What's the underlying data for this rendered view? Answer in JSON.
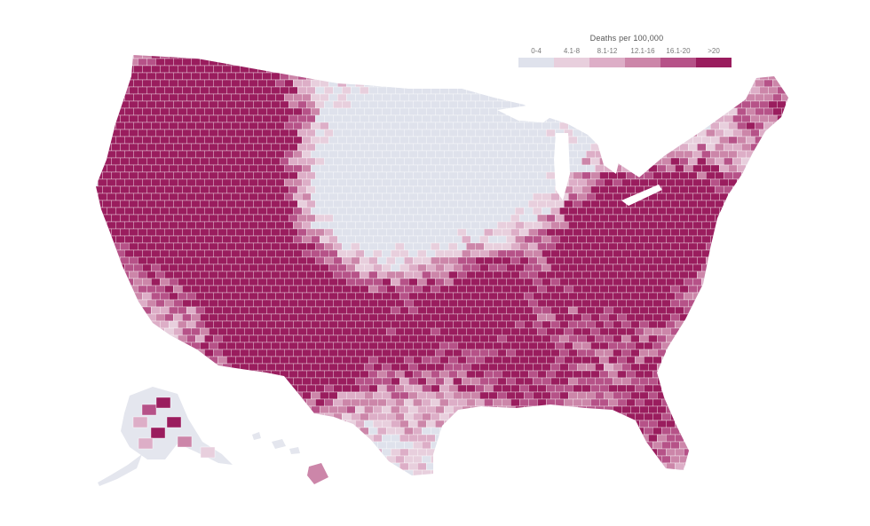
{
  "legend": {
    "title": "Deaths per 100,000",
    "bins": [
      {
        "label": "0-4",
        "color": "#dfe2ec"
      },
      {
        "label": "4.1-8",
        "color": "#e8cfdd"
      },
      {
        "label": "8.1-12",
        "color": "#ddaec7"
      },
      {
        "label": "12.1-16",
        "color": "#cc86a9"
      },
      {
        "label": "16.1-20",
        "color": "#b65288"
      },
      {
        "label": ">20",
        "color": "#9a1d5e"
      }
    ]
  },
  "map": {
    "region": "United States counties",
    "land_base_color": "#e4e6ee",
    "border_color": "#ffffff"
  }
}
